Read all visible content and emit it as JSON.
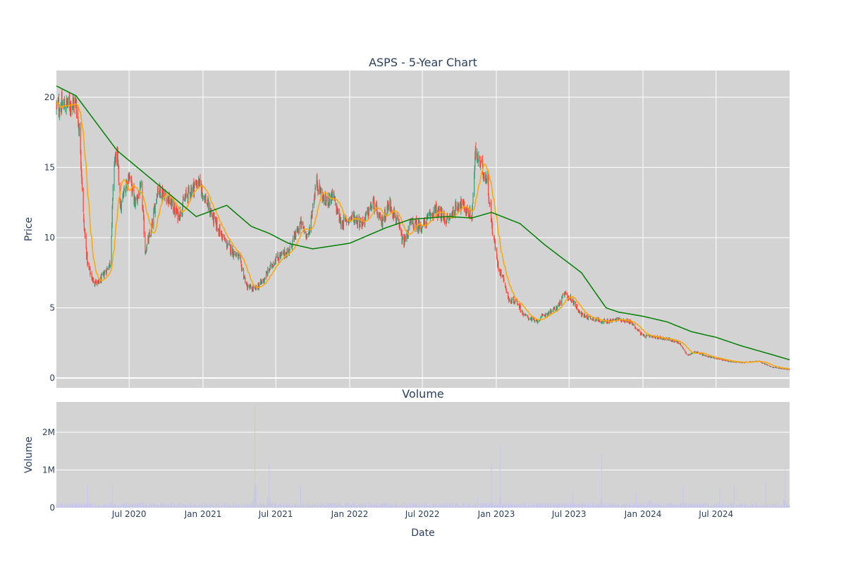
{
  "chart_data": [
    {
      "type": "candlestick",
      "title": "ASPS - 5-Year Chart",
      "ylabel": "Price",
      "ylim": [
        -0.7,
        21.9
      ],
      "y_ticks": [
        0,
        5,
        10,
        15,
        20
      ],
      "x_ticks": [
        "Jul 2020",
        "Jan 2021",
        "Jul 2021",
        "Jan 2022",
        "Jul 2022",
        "Jan 2023",
        "Jul 2023",
        "Jan 2024",
        "Jul 2024"
      ],
      "x_tick_dates": [
        "2020-07-01",
        "2021-01-01",
        "2021-07-01",
        "2022-01-01",
        "2022-07-01",
        "2023-01-01",
        "2023-07-01",
        "2024-01-01",
        "2024-07-01"
      ],
      "xlim": [
        "2020-01-02",
        "2024-12-31"
      ],
      "up_color": "#3d9970",
      "down_color": "#ff4136",
      "close_anchors": [
        [
          "2020-01-02",
          19.3
        ],
        [
          "2020-02-01",
          19.5
        ],
        [
          "2020-02-20",
          19.6
        ],
        [
          "2020-03-01",
          17.0
        ],
        [
          "2020-03-10",
          11.0
        ],
        [
          "2020-03-20",
          8.0
        ],
        [
          "2020-04-01",
          7.0
        ],
        [
          "2020-04-15",
          6.7
        ],
        [
          "2020-05-01",
          7.5
        ],
        [
          "2020-05-15",
          8.2
        ],
        [
          "2020-05-25",
          15.5
        ],
        [
          "2020-06-01",
          16.0
        ],
        [
          "2020-06-10",
          12.0
        ],
        [
          "2020-06-20",
          13.5
        ],
        [
          "2020-07-01",
          14.5
        ],
        [
          "2020-07-15",
          12.5
        ],
        [
          "2020-08-01",
          13.5
        ],
        [
          "2020-08-10",
          9.0
        ],
        [
          "2020-08-25",
          10.5
        ],
        [
          "2020-09-10",
          13.5
        ],
        [
          "2020-10-01",
          13.0
        ],
        [
          "2020-11-01",
          11.5
        ],
        [
          "2020-11-20",
          13.0
        ],
        [
          "2020-12-20",
          14.0
        ],
        [
          "2021-01-10",
          12.5
        ],
        [
          "2021-02-01",
          11.0
        ],
        [
          "2021-03-01",
          9.5
        ],
        [
          "2021-04-01",
          8.5
        ],
        [
          "2021-04-20",
          6.5
        ],
        [
          "2021-05-10",
          6.3
        ],
        [
          "2021-06-01",
          7.0
        ],
        [
          "2021-06-20",
          8.0
        ],
        [
          "2021-07-01",
          8.5
        ],
        [
          "2021-08-01",
          9.0
        ],
        [
          "2021-09-01",
          11.0
        ],
        [
          "2021-09-20",
          10.0
        ],
        [
          "2021-10-10",
          14.0
        ],
        [
          "2021-11-01",
          12.5
        ],
        [
          "2021-11-20",
          13.0
        ],
        [
          "2021-12-10",
          11.0
        ],
        [
          "2022-01-10",
          11.5
        ],
        [
          "2022-02-01",
          11.0
        ],
        [
          "2022-03-01",
          12.5
        ],
        [
          "2022-03-20",
          11.0
        ],
        [
          "2022-04-10",
          12.5
        ],
        [
          "2022-05-01",
          11.0
        ],
        [
          "2022-05-15",
          9.5
        ],
        [
          "2022-06-01",
          11.0
        ],
        [
          "2022-07-01",
          10.8
        ],
        [
          "2022-08-01",
          12.0
        ],
        [
          "2022-09-01",
          11.2
        ],
        [
          "2022-10-01",
          12.5
        ],
        [
          "2022-11-01",
          11.5
        ],
        [
          "2022-11-10",
          16.0
        ],
        [
          "2022-11-25",
          15.0
        ],
        [
          "2022-12-10",
          14.0
        ],
        [
          "2022-12-20",
          11.0
        ],
        [
          "2023-01-05",
          8.0
        ],
        [
          "2023-01-20",
          7.0
        ],
        [
          "2023-02-01",
          5.5
        ],
        [
          "2023-02-20",
          5.5
        ],
        [
          "2023-03-10",
          4.5
        ],
        [
          "2023-04-10",
          4.0
        ],
        [
          "2023-05-01",
          4.5
        ],
        [
          "2023-06-01",
          5.0
        ],
        [
          "2023-06-20",
          6.0
        ],
        [
          "2023-07-10",
          5.5
        ],
        [
          "2023-08-01",
          4.5
        ],
        [
          "2023-09-01",
          4.2
        ],
        [
          "2023-10-01",
          4.0
        ],
        [
          "2023-11-01",
          4.2
        ],
        [
          "2023-12-01",
          4.0
        ],
        [
          "2024-01-01",
          3.0
        ],
        [
          "2024-02-01",
          2.9
        ],
        [
          "2024-03-01",
          2.8
        ],
        [
          "2024-04-01",
          2.5
        ],
        [
          "2024-04-20",
          1.6
        ],
        [
          "2024-05-10",
          1.9
        ],
        [
          "2024-06-01",
          1.6
        ],
        [
          "2024-07-01",
          1.4
        ],
        [
          "2024-08-01",
          1.2
        ],
        [
          "2024-09-01",
          1.1
        ],
        [
          "2024-10-15",
          1.2
        ],
        [
          "2024-11-15",
          0.8
        ],
        [
          "2024-12-31",
          0.6
        ]
      ],
      "ma200_anchors": [
        [
          "2020-01-02",
          20.8
        ],
        [
          "2020-02-20",
          20.1
        ],
        [
          "2020-04-15",
          18.0
        ],
        [
          "2020-06-01",
          16.2
        ],
        [
          "2020-10-01",
          13.3
        ],
        [
          "2020-12-15",
          11.5
        ],
        [
          "2021-03-01",
          12.3
        ],
        [
          "2021-05-01",
          10.8
        ],
        [
          "2021-06-15",
          10.3
        ],
        [
          "2021-08-01",
          9.6
        ],
        [
          "2021-10-01",
          9.2
        ],
        [
          "2022-01-01",
          9.6
        ],
        [
          "2022-04-01",
          10.7
        ],
        [
          "2022-06-01",
          11.3
        ],
        [
          "2022-09-01",
          11.5
        ],
        [
          "2022-11-01",
          11.4
        ],
        [
          "2022-12-20",
          11.8
        ],
        [
          "2023-03-01",
          11.0
        ],
        [
          "2023-05-01",
          9.5
        ],
        [
          "2023-08-01",
          7.5
        ],
        [
          "2023-10-01",
          5.0
        ],
        [
          "2023-11-01",
          4.7
        ],
        [
          "2024-01-01",
          4.4
        ],
        [
          "2024-03-01",
          4.0
        ],
        [
          "2024-05-01",
          3.3
        ],
        [
          "2024-07-01",
          2.9
        ],
        [
          "2024-09-01",
          2.3
        ],
        [
          "2024-11-01",
          1.8
        ],
        [
          "2024-12-31",
          1.3
        ]
      ],
      "ma_colors": {
        "ma200": "#008000",
        "ma20": "#ffa500"
      }
    },
    {
      "type": "bar",
      "title": "Volume",
      "ylabel": "Volume",
      "xlabel": "Date",
      "ylim": [
        0,
        2800000
      ],
      "y_ticks": [
        0,
        1000000,
        2000000
      ],
      "y_tick_labels": [
        "0",
        "1M",
        "2M"
      ],
      "bar_color": "#c6c6ec",
      "spikes": [
        [
          "2020-03-20",
          600000
        ],
        [
          "2020-05-20",
          650000
        ],
        [
          "2020-08-01",
          600000
        ],
        [
          "2021-05-10",
          2700000
        ],
        [
          "2021-06-15",
          1200000
        ],
        [
          "2021-09-01",
          600000
        ],
        [
          "2022-01-01",
          300000
        ],
        [
          "2022-11-15",
          300000
        ],
        [
          "2022-12-20",
          1200000
        ],
        [
          "2023-01-10",
          1650000
        ],
        [
          "2023-07-10",
          400000
        ],
        [
          "2023-09-20",
          1400000
        ],
        [
          "2023-12-15",
          400000
        ],
        [
          "2024-01-20",
          800000
        ],
        [
          "2024-04-10",
          600000
        ],
        [
          "2024-07-10",
          500000
        ],
        [
          "2024-08-15",
          600000
        ],
        [
          "2024-11-01",
          700000
        ],
        [
          "2024-12-20",
          1000000
        ]
      ],
      "baseline_volume": 90000
    }
  ]
}
